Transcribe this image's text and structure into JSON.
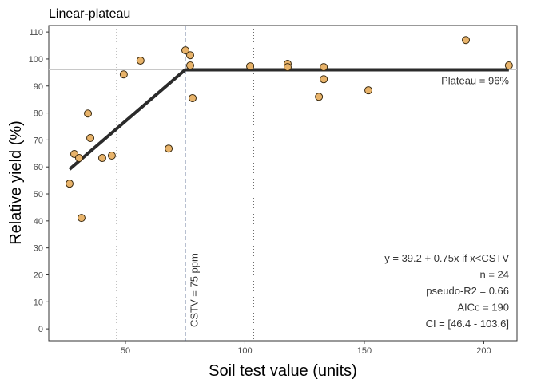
{
  "chart_data": {
    "type": "scatter",
    "title": "Linear-plateau",
    "xlabel": "Soil test value (units)",
    "ylabel": "Relative yield (%)",
    "xlim": [
      17.9,
      213.9
    ],
    "ylim": [
      -4.4,
      112.4
    ],
    "xticks": [
      50,
      100,
      150,
      200
    ],
    "yticks": [
      0,
      10,
      20,
      30,
      40,
      50,
      60,
      70,
      80,
      90,
      100,
      110
    ],
    "grid": false,
    "points": [
      [
        26.6,
        53.8
      ],
      [
        28.6,
        64.8
      ],
      [
        30.6,
        63.3
      ],
      [
        31.6,
        41.1
      ],
      [
        34.3,
        79.8
      ],
      [
        35.3,
        70.7
      ],
      [
        40.3,
        63.3
      ],
      [
        44.3,
        64.2
      ],
      [
        49.3,
        94.3
      ],
      [
        56.3,
        99.4
      ],
      [
        68.1,
        66.8
      ],
      [
        75.1,
        103.2
      ],
      [
        77.1,
        101.4
      ],
      [
        77.1,
        97.6
      ],
      [
        78.1,
        85.5
      ],
      [
        102.2,
        97.3
      ],
      [
        117.9,
        98.2
      ],
      [
        117.9,
        97.0
      ],
      [
        131.0,
        86.0
      ],
      [
        133.0,
        97.0
      ],
      [
        133.0,
        92.5
      ],
      [
        151.7,
        88.4
      ],
      [
        192.5,
        107.0
      ],
      [
        210.5,
        97.6
      ]
    ],
    "fit": {
      "intercept": 39.2,
      "slope": 0.75,
      "cstv": 75,
      "plateau": 96,
      "x_start": 26.6,
      "x_end": 210.5
    },
    "ci": [
      46.4,
      103.6
    ],
    "cstv_label": "CSTV = 75 ppm",
    "plateau_label": "Plateau = 96%",
    "stats_lines": [
      "y = 39.2 + 0.75x if x<CSTV",
      "n = 24",
      "pseudo-R2 = 0.66",
      "AICc = 190",
      "CI = [46.4 - 103.6]"
    ],
    "colors": {
      "point_fill": "#E8B36A",
      "point_stroke": "#3a2a10",
      "fit_line": "#2b2b2b",
      "cstv_line": "#1f3a6b",
      "plateau_ref": "#c8c8c8"
    }
  }
}
